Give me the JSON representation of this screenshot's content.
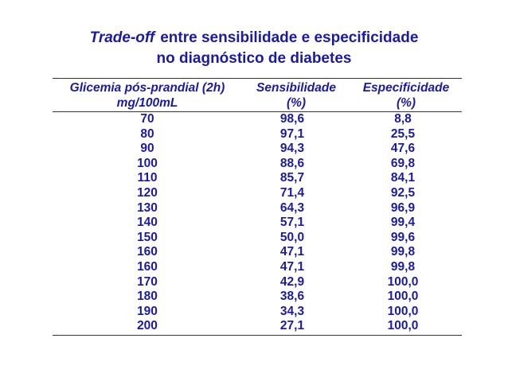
{
  "title": {
    "line1_em": "Trade-off",
    "line1_rest": "entre sensibilidade e especificidade",
    "line2": "no diagnóstico de diabetes"
  },
  "headers": {
    "col1_line1": "Glicemia pós-prandial (2h)",
    "col1_line2": "mg/100mL",
    "col2_line1": "Sensibilidade",
    "col2_line2": "(%)",
    "col3_line1": "Especificidade",
    "col3_line2": "(%)"
  },
  "rows": [
    {
      "glicemia": "70",
      "sensibilidade": "98,6",
      "especificidade": "8,8"
    },
    {
      "glicemia": "80",
      "sensibilidade": "97,1",
      "especificidade": "25,5"
    },
    {
      "glicemia": "90",
      "sensibilidade": "94,3",
      "especificidade": "47,6"
    },
    {
      "glicemia": "100",
      "sensibilidade": "88,6",
      "especificidade": "69,8"
    },
    {
      "glicemia": "110",
      "sensibilidade": "85,7",
      "especificidade": "84,1"
    },
    {
      "glicemia": "120",
      "sensibilidade": "71,4",
      "especificidade": "92,5"
    },
    {
      "glicemia": "130",
      "sensibilidade": "64,3",
      "especificidade": "96,9"
    },
    {
      "glicemia": "140",
      "sensibilidade": "57,1",
      "especificidade": "99,4"
    },
    {
      "glicemia": "150",
      "sensibilidade": "50,0",
      "especificidade": "99,6"
    },
    {
      "glicemia": "160",
      "sensibilidade": "47,1",
      "especificidade": "99,8"
    },
    {
      "glicemia": "160",
      "sensibilidade": "47,1",
      "especificidade": "99,8"
    },
    {
      "glicemia": "170",
      "sensibilidade": "42,9",
      "especificidade": "100,0"
    },
    {
      "glicemia": "180",
      "sensibilidade": "38,6",
      "especificidade": "100,0"
    },
    {
      "glicemia": "190",
      "sensibilidade": "34,3",
      "especificidade": "100,0"
    },
    {
      "glicemia": "200",
      "sensibilidade": "27,1",
      "especificidade": "100,0"
    }
  ],
  "colors": {
    "text": "#1a1aa6",
    "rule": "#333333",
    "background": "#ffffff"
  }
}
